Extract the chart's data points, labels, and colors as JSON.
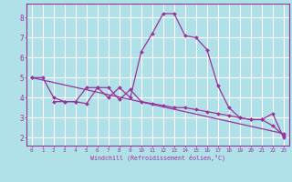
{
  "xlabel": "Windchill (Refroidissement éolien,°C)",
  "background_color": "#b0e0e8",
  "line_color": "#993399",
  "grid_color": "#ffffff",
  "xlim": [
    -0.5,
    23.5
  ],
  "ylim": [
    1.6,
    8.7
  ],
  "yticks": [
    2,
    3,
    4,
    5,
    6,
    7,
    8
  ],
  "xticks": [
    0,
    1,
    2,
    3,
    4,
    5,
    6,
    7,
    8,
    9,
    10,
    11,
    12,
    13,
    14,
    15,
    16,
    17,
    18,
    19,
    20,
    21,
    22,
    23
  ],
  "series1_x": [
    0,
    1,
    2,
    3,
    4,
    5,
    6,
    7,
    8,
    9,
    10,
    11,
    12,
    13,
    14,
    15,
    16,
    17,
    18,
    19,
    20,
    21,
    22,
    23
  ],
  "series1_y": [
    5.0,
    5.0,
    4.0,
    3.8,
    3.8,
    4.5,
    4.5,
    4.0,
    4.5,
    4.0,
    6.3,
    7.2,
    8.2,
    8.2,
    7.1,
    7.0,
    6.4,
    4.6,
    3.5,
    3.0,
    2.9,
    2.9,
    3.2,
    2.0
  ],
  "series2_x": [
    2,
    3,
    4,
    5,
    6,
    7,
    8,
    9,
    10,
    11,
    12,
    13,
    14,
    15,
    16,
    17,
    18,
    19,
    20,
    21,
    22,
    23
  ],
  "series2_y": [
    3.8,
    3.8,
    3.8,
    3.7,
    4.5,
    4.5,
    3.9,
    4.4,
    3.8,
    3.7,
    3.6,
    3.5,
    3.5,
    3.4,
    3.3,
    3.2,
    3.1,
    3.0,
    2.9,
    2.9,
    2.6,
    2.1
  ],
  "series3_x": [
    0,
    23
  ],
  "series3_y": [
    5.0,
    2.2
  ]
}
